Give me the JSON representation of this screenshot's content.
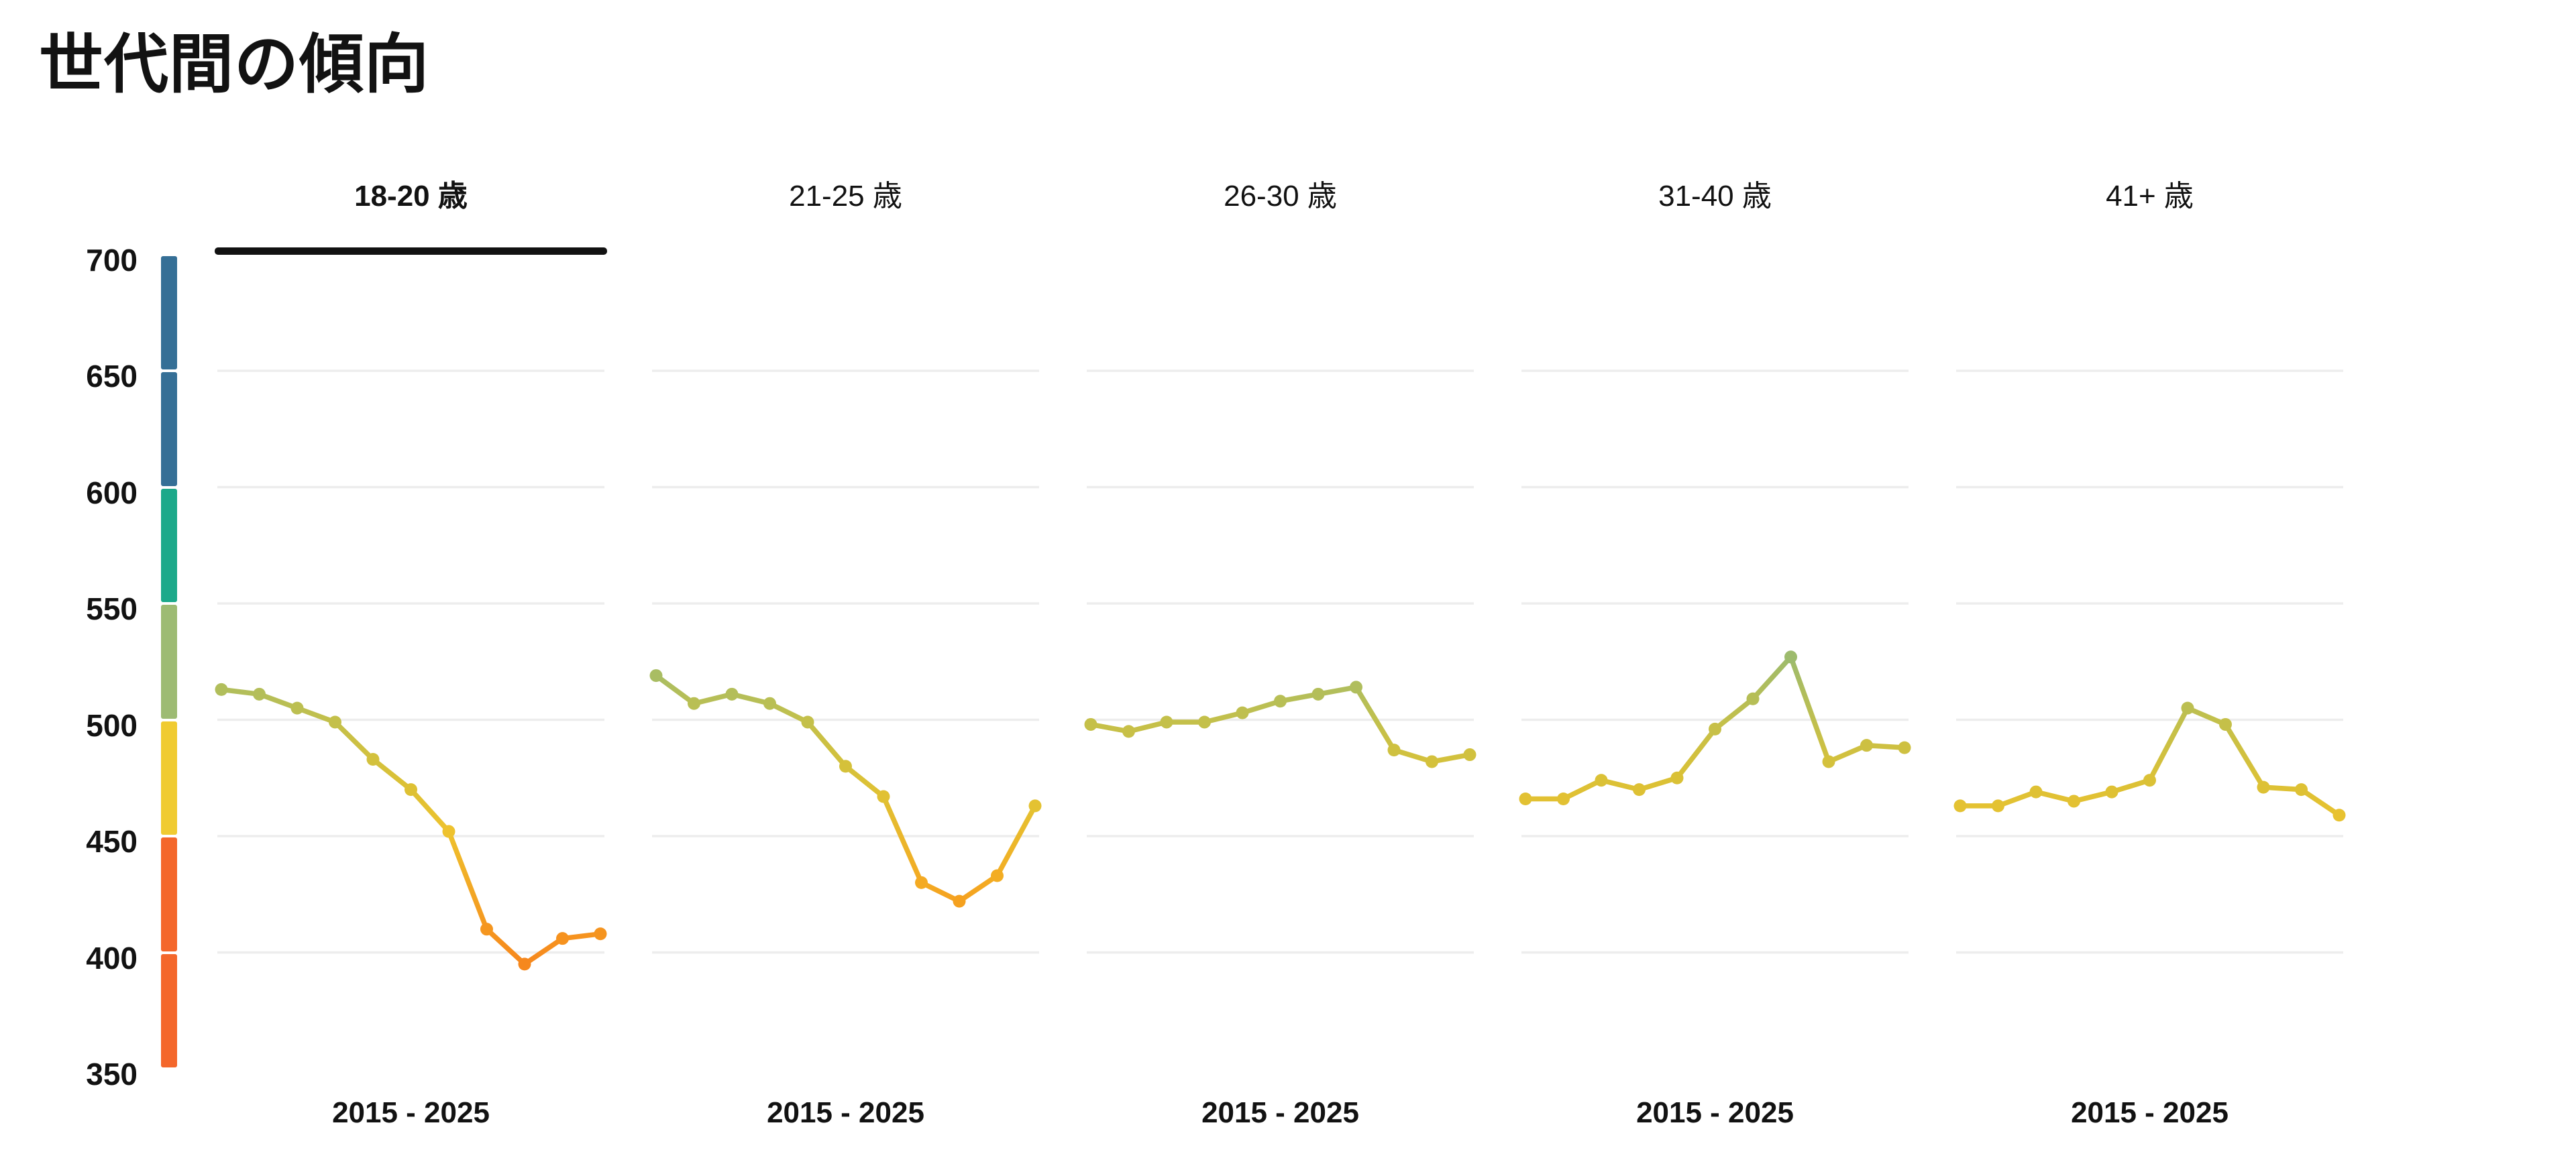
{
  "title": "世代間の傾向",
  "colors": {
    "text": "#121212",
    "gridline": "#EDEDED",
    "active_tab_underline": "#121212",
    "background": "#FFFFFF"
  },
  "y_axis": {
    "min": 350,
    "max": 700,
    "ticks": [
      700,
      650,
      600,
      550,
      500,
      450,
      400,
      350
    ]
  },
  "gridline_values": [
    650,
    600,
    550,
    500,
    450,
    400
  ],
  "rating_scale_legend": {
    "segments": [
      {
        "from": 650,
        "to": 700,
        "color": "#356F96",
        "name": "blue"
      },
      {
        "from": 600,
        "to": 650,
        "color": "#356F96",
        "name": "blue"
      },
      {
        "from": 550,
        "to": 600,
        "color": "#1CA98A",
        "name": "teal"
      },
      {
        "from": 500,
        "to": 550,
        "color": "#9DBB73",
        "name": "green"
      },
      {
        "from": 450,
        "to": 500,
        "color": "#F0CB31",
        "name": "yellow"
      },
      {
        "from": 400,
        "to": 450,
        "color": "#F4672B",
        "name": "orange"
      },
      {
        "from": 350,
        "to": 400,
        "color": "#F4672B",
        "name": "orange"
      }
    ]
  },
  "line_color_stops": [
    [
      388,
      "#F6811E"
    ],
    [
      425,
      "#F5A41F"
    ],
    [
      452,
      "#EEC22E"
    ],
    [
      475,
      "#DAC136"
    ],
    [
      500,
      "#C3C04B"
    ],
    [
      528,
      "#9CBB6E"
    ]
  ],
  "chart_data": {
    "type": "line",
    "small_multiples": true,
    "title": "世代間の傾向",
    "x": [
      2015,
      2016,
      2017,
      2018,
      2019,
      2020,
      2021,
      2022,
      2023,
      2024,
      2025
    ],
    "x_axis_label": "2015 - 2025",
    "ylim": [
      350,
      700
    ],
    "grid": "horizontal",
    "legend_position": "left-colorbar",
    "panels": [
      {
        "label": "18-20 歳",
        "active": true,
        "values": [
          513,
          511,
          505,
          499,
          483,
          470,
          452,
          410,
          395,
          406,
          408
        ]
      },
      {
        "label": "21-25 歳",
        "active": false,
        "values": [
          519,
          507,
          511,
          507,
          499,
          480,
          467,
          430,
          422,
          433,
          463
        ]
      },
      {
        "label": "26-30 歳",
        "active": false,
        "values": [
          498,
          495,
          499,
          499,
          503,
          508,
          511,
          514,
          487,
          482,
          485
        ]
      },
      {
        "label": "31-40 歳",
        "active": false,
        "values": [
          466,
          466,
          474,
          470,
          475,
          496,
          509,
          527,
          482,
          489,
          488
        ]
      },
      {
        "label": "41+ 歳",
        "active": false,
        "values": [
          463,
          463,
          469,
          465,
          469,
          474,
          505,
          498,
          471,
          470,
          459
        ]
      }
    ]
  }
}
